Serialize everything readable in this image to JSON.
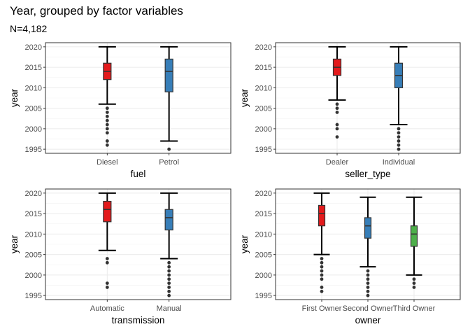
{
  "title": "Year, grouped by factor variables",
  "subtitle": "N=4,182",
  "colors": {
    "red": "#e41a1c",
    "blue": "#377eb8",
    "green": "#4daf4a"
  },
  "chart_data": [
    {
      "type": "box",
      "xlabel": "fuel",
      "ylabel": "year",
      "ylim": [
        1994,
        2021
      ],
      "yticks": [
        1995,
        2000,
        2005,
        2010,
        2015,
        2020
      ],
      "categories": [
        "Diesel",
        "Petrol"
      ],
      "boxes": [
        {
          "label": "Diesel",
          "color": "#e41a1c",
          "whisker_low": 2006,
          "q1": 2012,
          "median": 2014,
          "q3": 2016,
          "whisker_high": 2020,
          "outliers": [
            2005,
            2004,
            2003,
            2002,
            2001,
            2000,
            1999,
            1997,
            1996
          ]
        },
        {
          "label": "Petrol",
          "color": "#377eb8",
          "whisker_low": 1997,
          "q1": 2009,
          "median": 2014,
          "q3": 2017,
          "whisker_high": 2020,
          "outliers": [
            1995
          ]
        }
      ]
    },
    {
      "type": "box",
      "xlabel": "seller_type",
      "ylabel": "year",
      "ylim": [
        1994,
        2021
      ],
      "yticks": [
        1995,
        2000,
        2005,
        2010,
        2015,
        2020
      ],
      "categories": [
        "Dealer",
        "Individual"
      ],
      "boxes": [
        {
          "label": "Dealer",
          "color": "#e41a1c",
          "whisker_low": 2007,
          "q1": 2013,
          "median": 2015,
          "q3": 2017,
          "whisker_high": 2020,
          "outliers": [
            2006,
            2005,
            2004,
            2001,
            2000,
            1998
          ]
        },
        {
          "label": "Individual",
          "color": "#377eb8",
          "whisker_low": 2001,
          "q1": 2010,
          "median": 2013,
          "q3": 2016,
          "whisker_high": 2020,
          "outliers": [
            2000,
            1999,
            1998,
            1997,
            1996,
            1995
          ]
        }
      ]
    },
    {
      "type": "box",
      "xlabel": "transmission",
      "ylabel": "year",
      "ylim": [
        1994,
        2021
      ],
      "yticks": [
        1995,
        2000,
        2005,
        2010,
        2015,
        2020
      ],
      "categories": [
        "Automatic",
        "Manual"
      ],
      "boxes": [
        {
          "label": "Automatic",
          "color": "#e41a1c",
          "whisker_low": 2006,
          "q1": 2013,
          "median": 2016,
          "q3": 2018,
          "whisker_high": 2020,
          "outliers": [
            2004,
            2003,
            1998,
            1997
          ]
        },
        {
          "label": "Manual",
          "color": "#377eb8",
          "whisker_low": 2004,
          "q1": 2011,
          "median": 2014,
          "q3": 2016,
          "whisker_high": 2020,
          "outliers": [
            2003,
            2002,
            2001,
            2000,
            1999,
            1998,
            1997,
            1996,
            1995
          ]
        }
      ]
    },
    {
      "type": "box",
      "xlabel": "owner",
      "ylabel": "year",
      "ylim": [
        1994,
        2021
      ],
      "yticks": [
        1995,
        2000,
        2005,
        2010,
        2015,
        2020
      ],
      "categories": [
        "First Owner",
        "Second Owner",
        "Third Owner"
      ],
      "boxes": [
        {
          "label": "First Owner",
          "color": "#e41a1c",
          "whisker_low": 2005,
          "q1": 2012,
          "median": 2015,
          "q3": 2017,
          "whisker_high": 2020,
          "outliers": [
            2004,
            2003,
            2002,
            2001,
            2000,
            1999,
            1997,
            1996
          ]
        },
        {
          "label": "Second Owner",
          "color": "#377eb8",
          "whisker_low": 2002,
          "q1": 2009,
          "median": 2012,
          "q3": 2014,
          "whisker_high": 2019,
          "outliers": [
            2001,
            2000,
            1999,
            1998,
            1997,
            1996,
            1995
          ]
        },
        {
          "label": "Third Owner",
          "color": "#4daf4a",
          "whisker_low": 2000,
          "q1": 2007,
          "median": 2010,
          "q3": 2012,
          "whisker_high": 2019,
          "outliers": [
            1999,
            1998,
            1997
          ]
        }
      ]
    }
  ]
}
